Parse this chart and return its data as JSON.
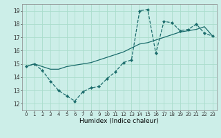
{
  "title": "",
  "xlabel": "Humidex (Indice chaleur)",
  "xlim": [
    -0.5,
    23.5
  ],
  "ylim": [
    11.5,
    19.5
  ],
  "xticks": [
    0,
    1,
    2,
    3,
    4,
    5,
    6,
    7,
    8,
    9,
    10,
    11,
    12,
    13,
    14,
    15,
    16,
    17,
    18,
    19,
    20,
    21,
    22,
    23
  ],
  "yticks": [
    12,
    13,
    14,
    15,
    16,
    17,
    18,
    19
  ],
  "background_color": "#cceee8",
  "grid_color": "#aaddcc",
  "line_color": "#1a6b6b",
  "line1_x": [
    0,
    1,
    2,
    3,
    4,
    5,
    6,
    7,
    8,
    9,
    10,
    11,
    12,
    13,
    14,
    15,
    16,
    17,
    18,
    19,
    20,
    21,
    22,
    23
  ],
  "line1_y": [
    14.8,
    15.0,
    14.5,
    13.7,
    13.0,
    12.6,
    12.2,
    12.9,
    13.2,
    13.3,
    13.9,
    14.4,
    15.1,
    15.3,
    19.0,
    19.1,
    15.8,
    18.2,
    18.1,
    17.5,
    17.6,
    18.0,
    17.3,
    17.1
  ],
  "line2_x": [
    0,
    1,
    2,
    3,
    4,
    5,
    6,
    7,
    8,
    9,
    10,
    11,
    12,
    13,
    14,
    15,
    16,
    17,
    18,
    19,
    20,
    21,
    22,
    23
  ],
  "line2_y": [
    14.8,
    15.0,
    14.8,
    14.6,
    14.6,
    14.8,
    14.9,
    15.0,
    15.1,
    15.3,
    15.5,
    15.7,
    15.9,
    16.2,
    16.5,
    16.6,
    16.8,
    17.0,
    17.2,
    17.4,
    17.5,
    17.6,
    17.8,
    17.1
  ],
  "xtick_fontsize": 5.0,
  "ytick_fontsize": 5.5,
  "xlabel_fontsize": 6.5
}
